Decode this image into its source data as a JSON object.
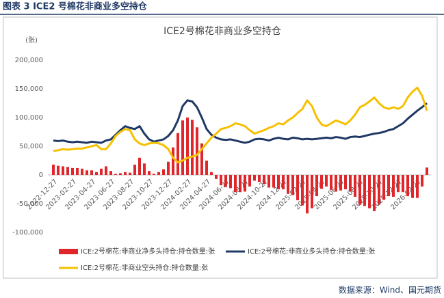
{
  "header": {
    "title": "图表 3 ICE2 号棉花非商业多空持仓"
  },
  "source": "数据来源：Wind、国元期货",
  "chart_data": {
    "type": "bar-line",
    "title": "ICE2号棉花非商业多空持仓",
    "y_unit": "(张)",
    "categories": [
      "2022-12-27",
      null,
      null,
      null,
      "2023-02-27",
      null,
      null,
      null,
      "2023-04-27",
      null,
      null,
      null,
      "2023-06-27",
      null,
      null,
      null,
      "2023-08-27",
      null,
      null,
      null,
      "2023-10-27",
      null,
      null,
      null,
      "2023-12-27",
      null,
      null,
      null,
      "2024-02-27",
      null,
      null,
      null,
      "2024-04-27",
      null,
      null,
      null,
      "2024-06-27",
      null,
      null,
      null,
      "2024-08-27",
      null,
      null,
      null,
      "2024-10-27",
      null,
      null,
      null,
      "2024-12-27",
      null,
      null,
      null,
      "2025-02-27",
      null,
      null,
      null,
      "2025-04-27",
      null,
      null,
      null,
      "2025-06-27",
      null,
      null,
      null,
      "2025-08-27",
      null,
      null,
      null,
      "2025-10-27",
      null,
      null,
      null,
      "2025-12-27",
      null,
      null,
      null,
      "2026-02-27",
      null,
      null
    ],
    "series": [
      {
        "name": "ICE:2号棉花:非商业净多头持仓:持仓数量:张",
        "type": "bar",
        "color": "#e0262b",
        "values": [
          18000,
          16000,
          15000,
          14000,
          12000,
          12000,
          11000,
          8000,
          8000,
          5000,
          11000,
          15000,
          7000,
          2000,
          3000,
          5000,
          4000,
          18000,
          30000,
          20000,
          7000,
          2000,
          5000,
          10000,
          23000,
          48000,
          73000,
          95000,
          100000,
          96000,
          83000,
          55000,
          25000,
          5000,
          -7000,
          -18000,
          -21000,
          -23000,
          -30000,
          -30000,
          -29000,
          -20000,
          -10000,
          -12000,
          -16000,
          -22000,
          -22000,
          -25000,
          -25000,
          -33000,
          -35000,
          -44000,
          -53000,
          -67000,
          -58000,
          -37000,
          -24000,
          -20000,
          -26000,
          -29000,
          -27000,
          -25000,
          -29000,
          -38000,
          -52000,
          -54000,
          -58000,
          -63000,
          -52000,
          -43000,
          -37000,
          -38000,
          -30000,
          -30000,
          -37000,
          -40000,
          -40000,
          -20000,
          13000
        ]
      },
      {
        "name": "ICE:2号棉花:非商业多头持仓:持仓数量:张",
        "type": "line",
        "color": "#1f3864",
        "values": [
          60000,
          59000,
          60000,
          58000,
          57000,
          58000,
          57000,
          56000,
          58000,
          57000,
          56000,
          60000,
          62000,
          70000,
          78000,
          85000,
          82000,
          80000,
          85000,
          72000,
          62000,
          58000,
          60000,
          62000,
          68000,
          78000,
          95000,
          120000,
          130000,
          128000,
          118000,
          100000,
          80000,
          70000,
          65000,
          62000,
          61000,
          62000,
          60000,
          58000,
          56000,
          58000,
          62000,
          63000,
          62000,
          60000,
          63000,
          65000,
          63000,
          62000,
          65000,
          64000,
          62000,
          63000,
          62000,
          63000,
          64000,
          65000,
          64000,
          66000,
          65000,
          63000,
          66000,
          67000,
          66000,
          68000,
          70000,
          72000,
          73000,
          75000,
          78000,
          80000,
          85000,
          90000,
          98000,
          105000,
          112000,
          118000,
          125000
        ]
      },
      {
        "name": "ICE:2号棉花:非商业空头持仓:持仓数量:张",
        "type": "line",
        "color": "#f5c000",
        "values": [
          42000,
          43000,
          45000,
          44000,
          45000,
          46000,
          46000,
          48000,
          50000,
          52000,
          45000,
          45000,
          55000,
          68000,
          75000,
          80000,
          78000,
          62000,
          55000,
          52000,
          55000,
          56000,
          55000,
          52000,
          45000,
          30000,
          22000,
          25000,
          30000,
          32000,
          35000,
          45000,
          55000,
          65000,
          72000,
          80000,
          82000,
          85000,
          90000,
          88000,
          85000,
          78000,
          72000,
          75000,
          78000,
          82000,
          85000,
          90000,
          88000,
          95000,
          100000,
          108000,
          115000,
          130000,
          120000,
          100000,
          88000,
          85000,
          90000,
          95000,
          92000,
          88000,
          95000,
          105000,
          118000,
          122000,
          128000,
          135000,
          125000,
          118000,
          115000,
          118000,
          115000,
          120000,
          135000,
          145000,
          152000,
          138000,
          112000
        ]
      }
    ],
    "ylim": [
      -100000,
      200000
    ],
    "yticks": [
      {
        "value": -100000,
        "label": "-100,000"
      },
      {
        "value": -50000,
        "label": "-50,000"
      },
      0,
      {
        "value": 50000,
        "label": "50,000"
      },
      {
        "value": 100000,
        "label": "100,000"
      },
      {
        "value": 150000,
        "label": "150,000"
      },
      {
        "value": 200000,
        "label": "200,000"
      }
    ],
    "grid": false
  }
}
